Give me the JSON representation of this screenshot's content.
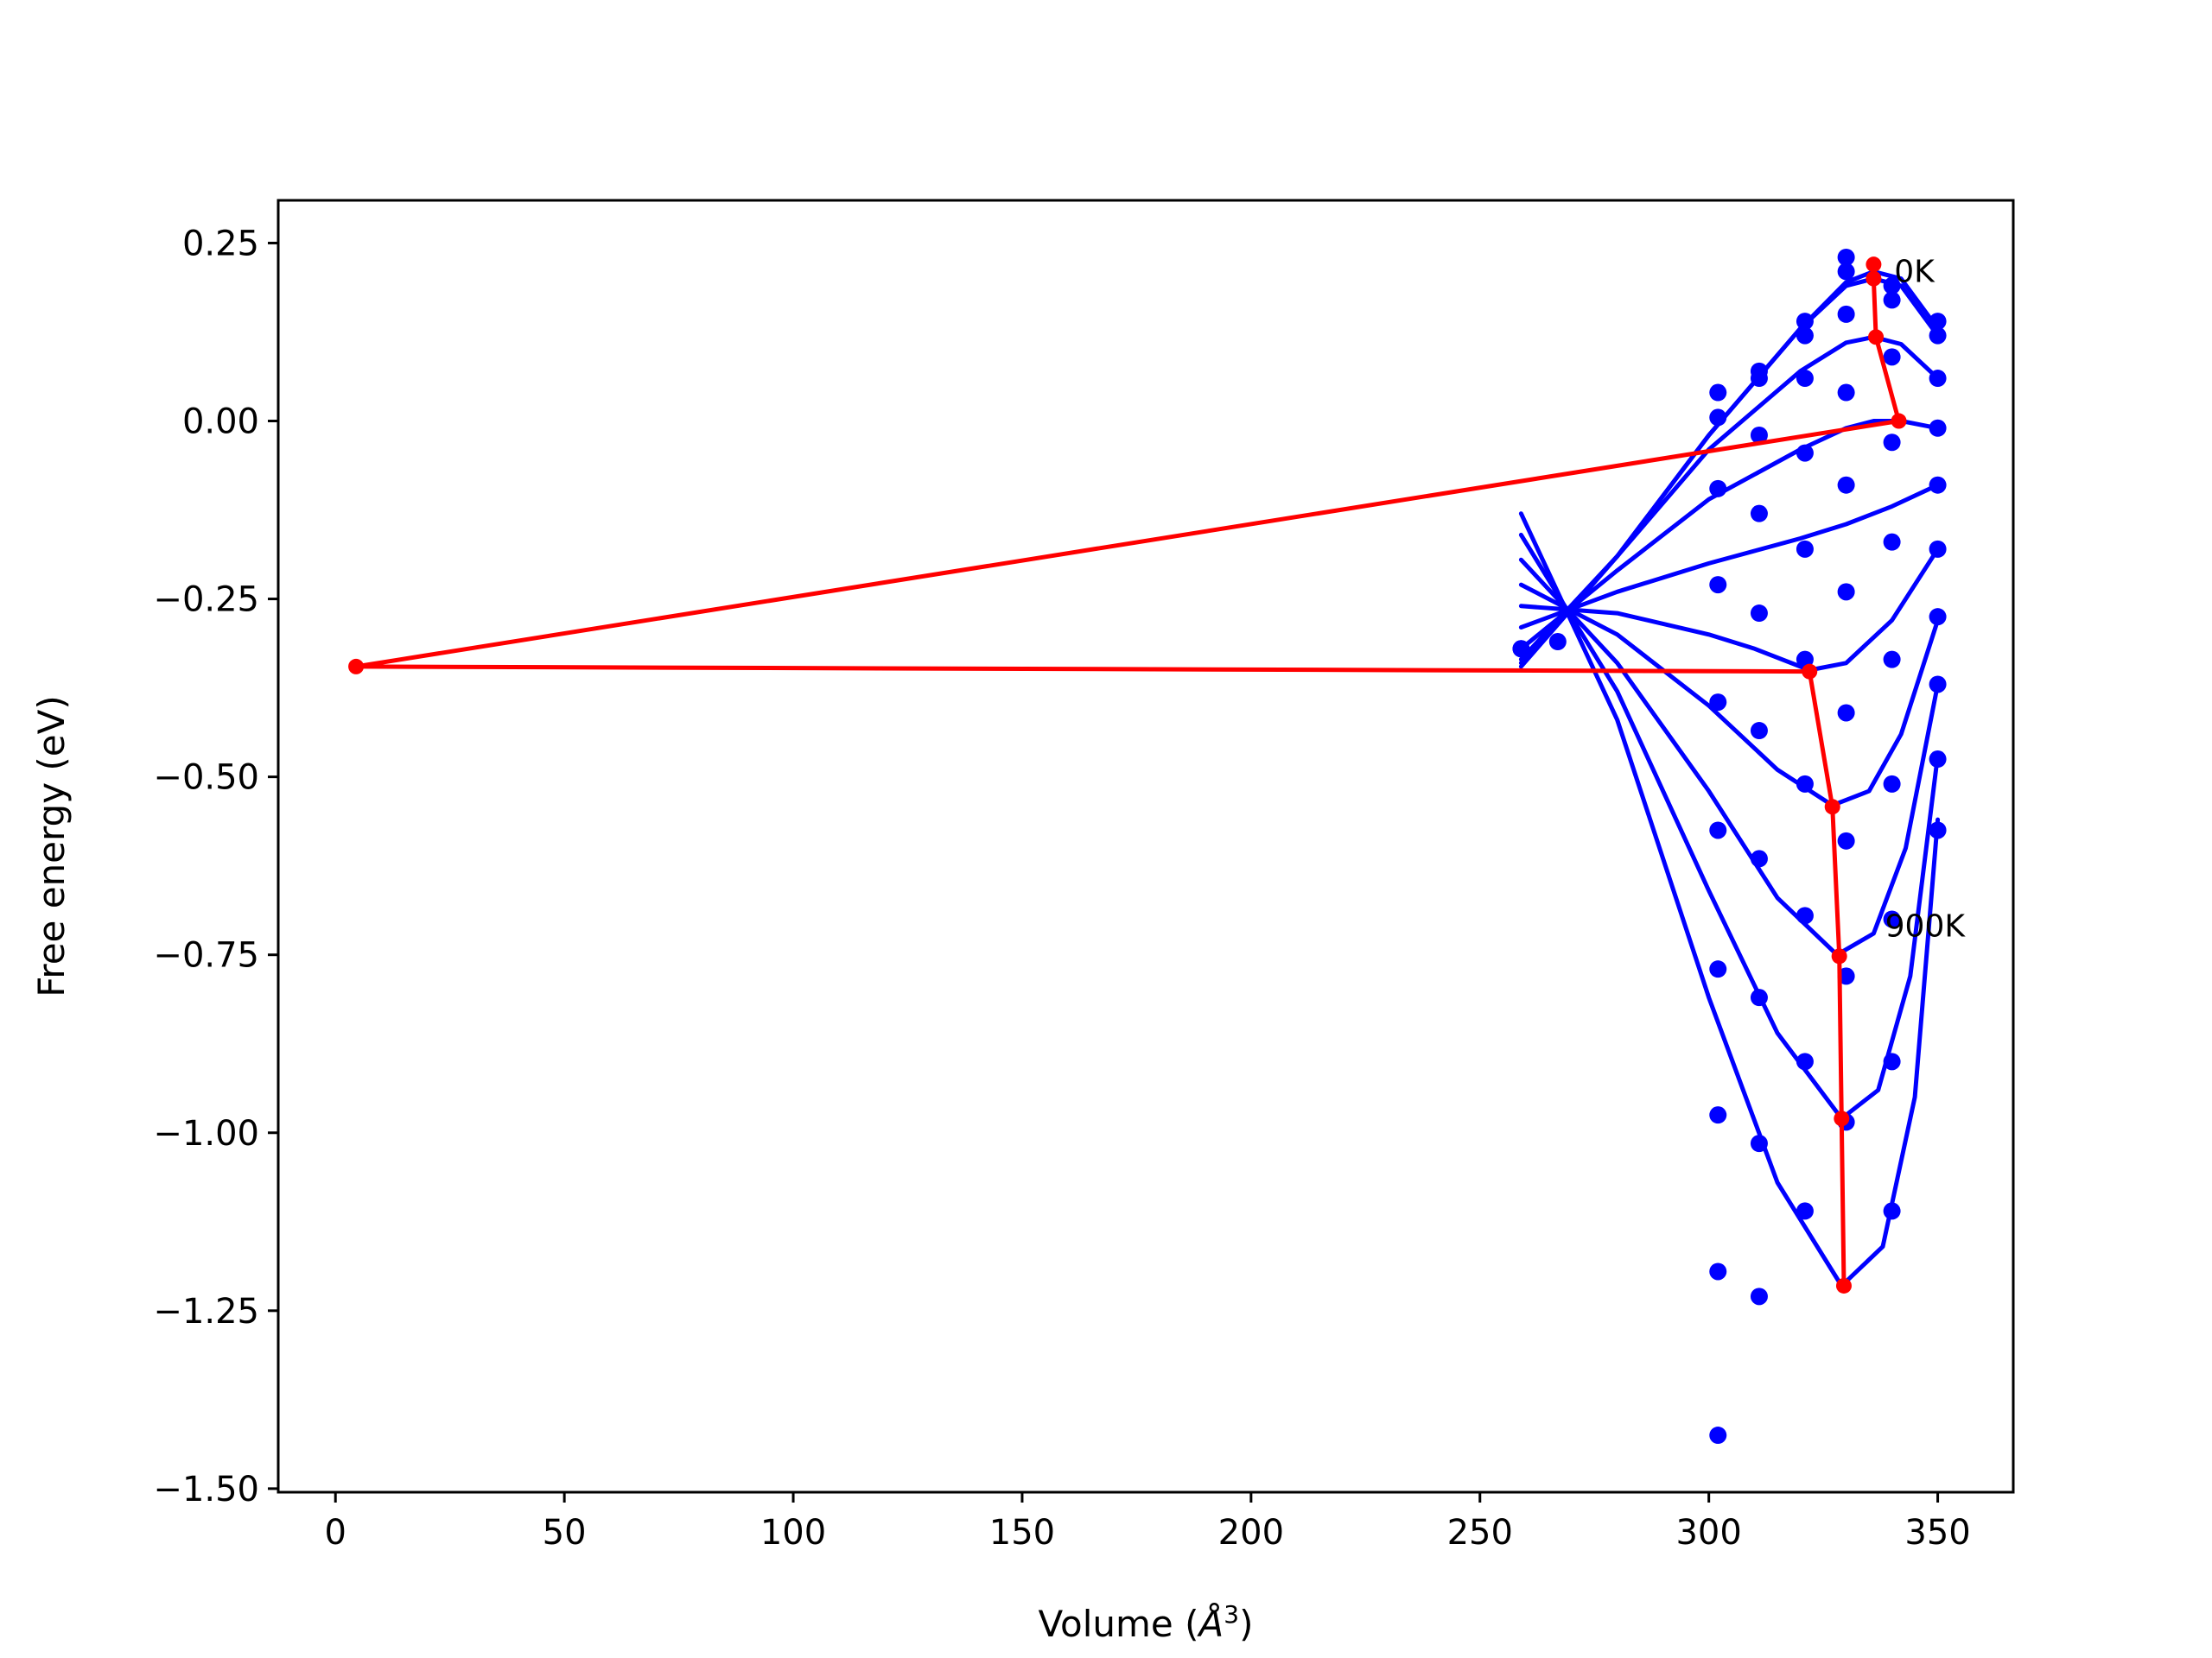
{
  "chart_data": {
    "type": "scatter",
    "xlabel": "Volume (",
    "xlabel_unit": "Å",
    "xlabel_sup": "3",
    "xlabel_close": ")",
    "ylabel": "Free energy (eV)",
    "xlim": [
      -12.5,
      366.5
    ],
    "ylim": [
      -1.505,
      0.31
    ],
    "xticks": [
      0,
      50,
      100,
      150,
      200,
      250,
      300,
      350
    ],
    "xtick_labels": [
      "0",
      "50",
      "100",
      "150",
      "200",
      "250",
      "300",
      "350"
    ],
    "yticks": [
      0.25,
      0.0,
      -0.25,
      -0.5,
      -0.75,
      -1.0,
      -1.25,
      -1.5
    ],
    "ytick_labels": [
      "0.25",
      "0.00",
      "−0.25",
      "−0.50",
      "−0.75",
      "−1.00",
      "−1.25",
      "−1.50"
    ],
    "grid": false,
    "annotations": [
      {
        "text": "0K",
        "x": 340.5,
        "y": 0.21
      },
      {
        "text": "900K",
        "x": 338.5,
        "y": -0.71
      }
    ],
    "series": [
      {
        "color": "#0000ff",
        "kind": "points",
        "points": [
          [
            259,
            -0.32
          ],
          [
            302,
            0.04
          ],
          [
            311,
            0.07
          ],
          [
            321,
            0.14
          ],
          [
            330,
            0.23
          ],
          [
            340,
            0.19
          ],
          [
            350,
            0.14
          ],
          [
            302,
            0.005
          ],
          [
            311,
            0.06
          ],
          [
            321,
            0.12
          ],
          [
            330,
            0.21
          ],
          [
            340,
            0.17
          ],
          [
            350,
            0.12
          ],
          [
            259,
            -0.32
          ],
          [
            267,
            -0.31
          ],
          [
            302,
            -0.095
          ],
          [
            311,
            -0.02
          ],
          [
            321,
            0.06
          ],
          [
            330,
            0.15
          ],
          [
            340,
            0.09
          ],
          [
            350,
            0.06
          ],
          [
            302,
            -0.23
          ],
          [
            311,
            -0.13
          ],
          [
            321,
            -0.045
          ],
          [
            330,
            0.04
          ],
          [
            340,
            -0.03
          ],
          [
            350,
            -0.01
          ],
          [
            302,
            -0.395
          ],
          [
            311,
            -0.27
          ],
          [
            321,
            -0.18
          ],
          [
            330,
            -0.09
          ],
          [
            340,
            -0.17
          ],
          [
            350,
            -0.09
          ],
          [
            311,
            -0.435
          ],
          [
            321,
            -0.335
          ],
          [
            330,
            -0.24
          ],
          [
            340,
            -0.335
          ],
          [
            350,
            -0.18
          ],
          [
            302,
            -0.575
          ],
          [
            311,
            -0.615
          ],
          [
            321,
            -0.51
          ],
          [
            330,
            -0.41
          ],
          [
            340,
            -0.51
          ],
          [
            350,
            -0.275
          ],
          [
            302,
            -0.77
          ],
          [
            311,
            -0.81
          ],
          [
            321,
            -0.695
          ],
          [
            330,
            -0.59
          ],
          [
            340,
            -0.7
          ],
          [
            350,
            -0.37
          ],
          [
            302,
            -0.975
          ],
          [
            311,
            -1.015
          ],
          [
            321,
            -0.9
          ],
          [
            330,
            -0.78
          ],
          [
            340,
            -0.9
          ],
          [
            350,
            -0.475
          ],
          [
            302,
            -1.195
          ],
          [
            311,
            -1.23
          ],
          [
            321,
            -1.11
          ],
          [
            330,
            -0.985
          ],
          [
            340,
            -1.11
          ],
          [
            350,
            -0.575
          ],
          [
            302,
            -1.425
          ]
        ]
      },
      {
        "color": "#0000ff",
        "kind": "line",
        "points": [
          [
            259,
            -0.345
          ],
          [
            280,
            -0.19
          ],
          [
            300,
            -0.02
          ],
          [
            320,
            0.13
          ],
          [
            330,
            0.195
          ],
          [
            336,
            0.21
          ],
          [
            342,
            0.2
          ],
          [
            350,
            0.13
          ]
        ]
      },
      {
        "color": "#0000ff",
        "kind": "line",
        "points": [
          [
            259,
            -0.34
          ],
          [
            280,
            -0.19
          ],
          [
            300,
            -0.02
          ],
          [
            320,
            0.13
          ],
          [
            330,
            0.19
          ],
          [
            336,
            0.2
          ],
          [
            342,
            0.19
          ],
          [
            350,
            0.12
          ]
        ]
      },
      {
        "color": "#0000ff",
        "kind": "line",
        "points": [
          [
            259,
            -0.335
          ],
          [
            280,
            -0.19
          ],
          [
            300,
            -0.04
          ],
          [
            320,
            0.07
          ],
          [
            330,
            0.11
          ],
          [
            336,
            0.118
          ],
          [
            342,
            0.108
          ],
          [
            350,
            0.06
          ]
        ]
      },
      {
        "color": "#0000ff",
        "kind": "line",
        "points": [
          [
            259,
            -0.32
          ],
          [
            280,
            -0.21
          ],
          [
            300,
            -0.11
          ],
          [
            320,
            -0.04
          ],
          [
            330,
            -0.01
          ],
          [
            336,
            0.0
          ],
          [
            342,
            0.0
          ],
          [
            350,
            -0.01
          ]
        ]
      },
      {
        "color": "#0000ff",
        "kind": "line",
        "points": [
          [
            259,
            -0.29
          ],
          [
            280,
            -0.24
          ],
          [
            300,
            -0.2
          ],
          [
            320,
            -0.165
          ],
          [
            330,
            -0.145
          ],
          [
            340,
            -0.12
          ],
          [
            350,
            -0.09
          ]
        ]
      },
      {
        "color": "#0000ff",
        "kind": "line",
        "points": [
          [
            259,
            -0.26
          ],
          [
            280,
            -0.27
          ],
          [
            300,
            -0.3
          ],
          [
            310,
            -0.32
          ],
          [
            322,
            -0.35
          ],
          [
            330,
            -0.34
          ],
          [
            340,
            -0.28
          ],
          [
            350,
            -0.18
          ]
        ]
      },
      {
        "color": "#0000ff",
        "kind": "line",
        "points": [
          [
            259,
            -0.23
          ],
          [
            280,
            -0.3
          ],
          [
            300,
            -0.4
          ],
          [
            315,
            -0.49
          ],
          [
            327,
            -0.54
          ],
          [
            335,
            -0.52
          ],
          [
            342,
            -0.44
          ],
          [
            350,
            -0.28
          ]
        ]
      },
      {
        "color": "#0000ff",
        "kind": "line",
        "points": [
          [
            259,
            -0.195
          ],
          [
            280,
            -0.34
          ],
          [
            300,
            -0.52
          ],
          [
            315,
            -0.67
          ],
          [
            328,
            -0.75
          ],
          [
            336,
            -0.72
          ],
          [
            343,
            -0.6
          ],
          [
            350,
            -0.37
          ]
        ]
      },
      {
        "color": "#0000ff",
        "kind": "line",
        "points": [
          [
            259,
            -0.16
          ],
          [
            280,
            -0.38
          ],
          [
            300,
            -0.66
          ],
          [
            315,
            -0.86
          ],
          [
            329,
            -0.98
          ],
          [
            337,
            -0.94
          ],
          [
            344,
            -0.78
          ],
          [
            350,
            -0.47
          ]
        ]
      },
      {
        "color": "#0000ff",
        "kind": "line",
        "points": [
          [
            259,
            -0.13
          ],
          [
            280,
            -0.42
          ],
          [
            300,
            -0.81
          ],
          [
            315,
            -1.07
          ],
          [
            329,
            -1.215
          ],
          [
            338,
            -1.16
          ],
          [
            345,
            -0.95
          ],
          [
            350,
            -0.56
          ]
        ]
      },
      {
        "color": "#ff0000",
        "kind": "line",
        "points": [
          [
            336,
            0.22
          ],
          [
            336,
            0.2
          ],
          [
            336.5,
            0.118
          ],
          [
            341.5,
            0.0
          ],
          [
            4.5,
            -0.345
          ],
          [
            322,
            -0.352
          ],
          [
            327,
            -0.542
          ],
          [
            328.5,
            -0.752
          ],
          [
            329,
            -0.98
          ],
          [
            329.5,
            -1.215
          ]
        ]
      }
    ]
  }
}
